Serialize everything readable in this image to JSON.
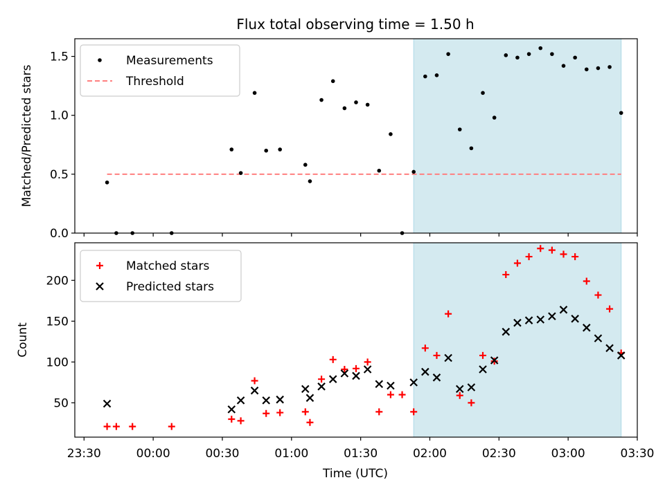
{
  "chart_data": [
    {
      "type": "scatter",
      "title": "Flux total observing time = 1.50 h",
      "xlabel": "",
      "ylabel": "Matched/Predicted stars",
      "ylim": [
        0.0,
        1.65
      ],
      "yticks": [
        "0.0",
        "0.5",
        "1.0",
        "1.5"
      ],
      "grid": false,
      "legend_position": "top-left",
      "highlight_span": [
        "01:53",
        "03:23"
      ],
      "highlight_color": "#d4eaf0",
      "threshold": {
        "name": "Threshold",
        "value": 0.5,
        "from": "23:40",
        "to": "03:23",
        "color": "#ff7f7f"
      },
      "series": [
        {
          "name": "Measurements",
          "color": "#000000",
          "marker": "dot",
          "points": [
            [
              "23:40",
              0.43
            ],
            [
              "23:44",
              0.0
            ],
            [
              "23:51",
              0.0
            ],
            [
              "00:08",
              0.0
            ],
            [
              "00:34",
              0.71
            ],
            [
              "00:38",
              0.51
            ],
            [
              "00:44",
              1.19
            ],
            [
              "00:49",
              0.7
            ],
            [
              "00:55",
              0.71
            ],
            [
              "01:06",
              0.58
            ],
            [
              "01:08",
              0.44
            ],
            [
              "01:13",
              1.13
            ],
            [
              "01:18",
              1.29
            ],
            [
              "01:23",
              1.06
            ],
            [
              "01:28",
              1.11
            ],
            [
              "01:33",
              1.09
            ],
            [
              "01:38",
              0.53
            ],
            [
              "01:43",
              0.84
            ],
            [
              "01:48",
              0.0
            ],
            [
              "01:53",
              0.52
            ],
            [
              "01:58",
              1.33
            ],
            [
              "02:03",
              1.34
            ],
            [
              "02:08",
              1.52
            ],
            [
              "02:13",
              0.88
            ],
            [
              "02:18",
              0.72
            ],
            [
              "02:23",
              1.19
            ],
            [
              "02:28",
              0.98
            ],
            [
              "02:33",
              1.51
            ],
            [
              "02:38",
              1.49
            ],
            [
              "02:43",
              1.52
            ],
            [
              "02:48",
              1.57
            ],
            [
              "02:53",
              1.52
            ],
            [
              "02:58",
              1.42
            ],
            [
              "03:03",
              1.49
            ],
            [
              "03:08",
              1.39
            ],
            [
              "03:13",
              1.4
            ],
            [
              "03:18",
              1.41
            ],
            [
              "03:23",
              1.02
            ]
          ]
        }
      ]
    },
    {
      "type": "scatter",
      "title": "",
      "xlabel": "Time (UTC)",
      "ylabel": "Count",
      "ylim": [
        8,
        246
      ],
      "yticks": [
        "50",
        "100",
        "150",
        "200"
      ],
      "xlim": [
        "23:26",
        "03:30"
      ],
      "xticks": [
        "23:30",
        "00:00",
        "00:30",
        "01:00",
        "01:30",
        "02:00",
        "02:30",
        "03:00",
        "03:30"
      ],
      "grid": false,
      "legend_position": "top-left",
      "highlight_span": [
        "01:53",
        "03:23"
      ],
      "highlight_color": "#d4eaf0",
      "series": [
        {
          "name": "Matched stars",
          "color": "#ff0000",
          "marker": "plus",
          "points": [
            [
              "23:40",
              21
            ],
            [
              "23:44",
              21
            ],
            [
              "23:51",
              21
            ],
            [
              "00:08",
              21
            ],
            [
              "00:34",
              30
            ],
            [
              "00:38",
              28
            ],
            [
              "00:44",
              77
            ],
            [
              "00:49",
              37
            ],
            [
              "00:55",
              38
            ],
            [
              "01:06",
              39
            ],
            [
              "01:08",
              26
            ],
            [
              "01:13",
              79
            ],
            [
              "01:18",
              103
            ],
            [
              "01:23",
              91
            ],
            [
              "01:28",
              92
            ],
            [
              "01:33",
              100
            ],
            [
              "01:38",
              39
            ],
            [
              "01:43",
              60
            ],
            [
              "01:48",
              60
            ],
            [
              "01:53",
              39
            ],
            [
              "01:58",
              117
            ],
            [
              "02:03",
              108
            ],
            [
              "02:08",
              159
            ],
            [
              "02:13",
              59
            ],
            [
              "02:18",
              50
            ],
            [
              "02:23",
              108
            ],
            [
              "02:28",
              101
            ],
            [
              "02:33",
              207
            ],
            [
              "02:38",
              221
            ],
            [
              "02:43",
              229
            ],
            [
              "02:48",
              239
            ],
            [
              "02:53",
              237
            ],
            [
              "02:58",
              232
            ],
            [
              "03:03",
              229
            ],
            [
              "03:08",
              199
            ],
            [
              "03:13",
              182
            ],
            [
              "03:18",
              165
            ],
            [
              "03:23",
              111
            ]
          ]
        },
        {
          "name": "Predicted stars",
          "color": "#000000",
          "marker": "x",
          "points": [
            [
              "23:40",
              49
            ],
            [
              "00:34",
              42
            ],
            [
              "00:38",
              53
            ],
            [
              "00:44",
              65
            ],
            [
              "00:49",
              53
            ],
            [
              "00:55",
              54
            ],
            [
              "01:06",
              67
            ],
            [
              "01:08",
              56
            ],
            [
              "01:13",
              70
            ],
            [
              "01:18",
              79
            ],
            [
              "01:23",
              86
            ],
            [
              "01:28",
              83
            ],
            [
              "01:33",
              91
            ],
            [
              "01:38",
              73
            ],
            [
              "01:43",
              71
            ],
            [
              "01:53",
              75
            ],
            [
              "01:58",
              88
            ],
            [
              "02:03",
              81
            ],
            [
              "02:08",
              105
            ],
            [
              "02:13",
              67
            ],
            [
              "02:18",
              69
            ],
            [
              "02:23",
              91
            ],
            [
              "02:28",
              102
            ],
            [
              "02:33",
              137
            ],
            [
              "02:38",
              148
            ],
            [
              "02:43",
              151
            ],
            [
              "02:48",
              152
            ],
            [
              "02:53",
              156
            ],
            [
              "02:58",
              164
            ],
            [
              "03:03",
              153
            ],
            [
              "03:08",
              142
            ],
            [
              "03:13",
              129
            ],
            [
              "03:18",
              117
            ],
            [
              "03:23",
              108
            ]
          ]
        }
      ]
    }
  ]
}
